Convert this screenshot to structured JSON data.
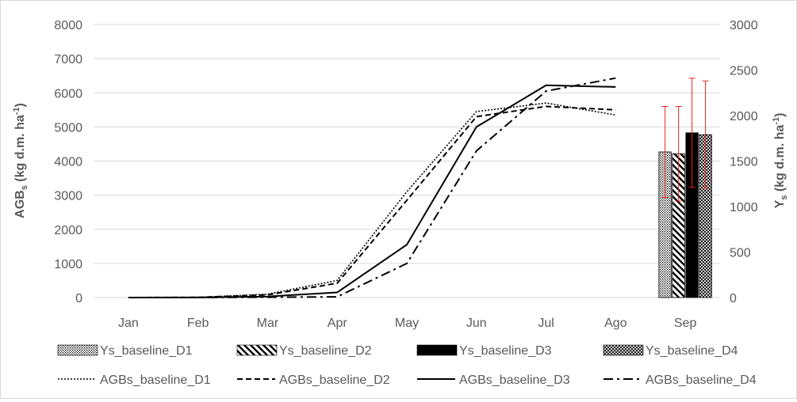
{
  "chart_data": {
    "type": "line",
    "categories": [
      "Jan",
      "Feb",
      "Mar",
      "Apr",
      "May",
      "Jun",
      "Jul",
      "Ago",
      "Sep"
    ],
    "left_axis": {
      "label_main": "AGB",
      "label_sub": "s",
      "label_unit": " (kg d.m. ha",
      "label_sup": "-1",
      "label_close": ")",
      "ylim": [
        0,
        8000
      ],
      "ticks": [
        "0",
        "1000",
        "2000",
        "3000",
        "4000",
        "5000",
        "6000",
        "7000",
        "8000"
      ]
    },
    "right_axis": {
      "label_main": "Y",
      "label_sub": "s",
      "label_unit": " (kg d.m. ha",
      "label_sup": "-1",
      "label_close": ")",
      "ylim": [
        0,
        3000
      ],
      "ticks": [
        "0",
        "500",
        "1000",
        "1500",
        "2000",
        "2500",
        "3000"
      ]
    },
    "grid": true,
    "legend_position": "bottom",
    "bar_series": [
      {
        "name": "Ys_baseline_D1",
        "category": "Sep",
        "value": 1600,
        "error": 500,
        "pattern": "dots"
      },
      {
        "name": "Ys_baseline_D2",
        "category": "Sep",
        "value": 1580,
        "error": 520,
        "pattern": "diagonal"
      },
      {
        "name": "Ys_baseline_D3",
        "category": "Sep",
        "value": 1810,
        "error": 600,
        "pattern": "solid"
      },
      {
        "name": "Ys_baseline_D4",
        "category": "Sep",
        "value": 1790,
        "error": 590,
        "pattern": "crosshatch"
      }
    ],
    "line_series": [
      {
        "name": "AGBs_baseline_D1",
        "dash": "dotted",
        "values": [
          0,
          5,
          100,
          500,
          3100,
          5450,
          5700,
          5350
        ]
      },
      {
        "name": "AGBs_baseline_D2",
        "dash": "dashed",
        "values": [
          0,
          5,
          80,
          420,
          2850,
          5300,
          5600,
          5500
        ]
      },
      {
        "name": "AGBs_baseline_D3",
        "dash": "solid",
        "values": [
          0,
          3,
          30,
          150,
          1550,
          5000,
          6220,
          6170
        ]
      },
      {
        "name": "AGBs_baseline_D4",
        "dash": "dashdot",
        "values": [
          0,
          2,
          10,
          20,
          1000,
          4300,
          6050,
          6430
        ]
      }
    ],
    "colors": {
      "bar": "#000000",
      "error_bar": "#e8251f",
      "grid": "#d9d9d9",
      "text": "#595959"
    }
  }
}
